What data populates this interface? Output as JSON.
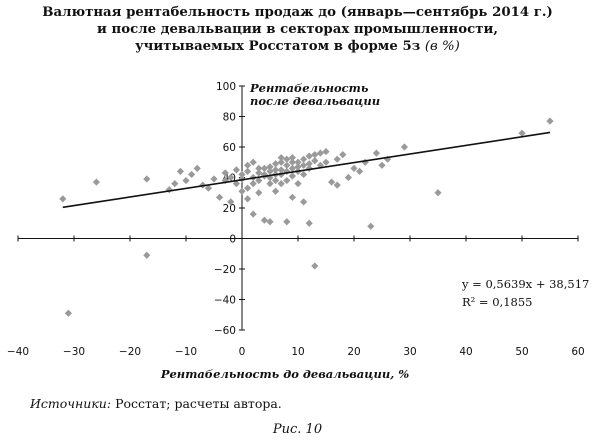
{
  "title_lines": [
    "Валютная рентабельность продаж до (январь—сентябрь 2014 г.)",
    "и после девальвации в секторах промышленности,",
    "учитываемых Росстатом в форме 5з"
  ],
  "title_unit": "(в %)",
  "source_label": "Источники:",
  "source_text": "Росстат; расчеты автора.",
  "caption": "Рис. 10",
  "chart_data": {
    "type": "scatter",
    "xlabel": "Рентабельность до девальвации, %",
    "ylabel": "Рентабельность после девальвации",
    "xlim": [
      -40,
      60
    ],
    "ylim": [
      -60,
      100
    ],
    "xticks": [
      -40,
      -30,
      -20,
      -10,
      0,
      10,
      20,
      30,
      40,
      50,
      60
    ],
    "yticks": [
      -60,
      -40,
      -20,
      0,
      20,
      40,
      60,
      80,
      100
    ],
    "marker_color": "#9a9a9a",
    "grid": false,
    "trendline": {
      "slope": 0.5639,
      "intercept": 38.517,
      "x_range": [
        -32,
        55
      ],
      "equation": "y = 0,5639x + 38,517",
      "r2": "R² = 0,1855"
    },
    "points": [
      [
        -32,
        26
      ],
      [
        -31,
        -49
      ],
      [
        -26,
        37
      ],
      [
        -17,
        -11
      ],
      [
        -17,
        39
      ],
      [
        -13,
        32
      ],
      [
        -12,
        36
      ],
      [
        -11,
        44
      ],
      [
        -10,
        38
      ],
      [
        -9,
        42
      ],
      [
        -8,
        46
      ],
      [
        -7,
        35
      ],
      [
        -6,
        33
      ],
      [
        -5,
        39
      ],
      [
        -4,
        27
      ],
      [
        -3,
        43
      ],
      [
        -3,
        38
      ],
      [
        -2,
        24
      ],
      [
        -1,
        36
      ],
      [
        0,
        42
      ],
      [
        0,
        39
      ],
      [
        0,
        31
      ],
      [
        1,
        44
      ],
      [
        1,
        48
      ],
      [
        1,
        26
      ],
      [
        2,
        16
      ],
      [
        2,
        40
      ],
      [
        2,
        36
      ],
      [
        3,
        43
      ],
      [
        3,
        46
      ],
      [
        3,
        30
      ],
      [
        4,
        46
      ],
      [
        4,
        41
      ],
      [
        4,
        12
      ],
      [
        5,
        36
      ],
      [
        5,
        47
      ],
      [
        5,
        11
      ],
      [
        5,
        44
      ],
      [
        6,
        42
      ],
      [
        6,
        38
      ],
      [
        6,
        49
      ],
      [
        6,
        31
      ],
      [
        7,
        42
      ],
      [
        7,
        45
      ],
      [
        7,
        50
      ],
      [
        7,
        53
      ],
      [
        8,
        38
      ],
      [
        8,
        48
      ],
      [
        8,
        44
      ],
      [
        8,
        11
      ],
      [
        9,
        50
      ],
      [
        9,
        53
      ],
      [
        9,
        41
      ],
      [
        9,
        27
      ],
      [
        10,
        47
      ],
      [
        10,
        50
      ],
      [
        10,
        36
      ],
      [
        11,
        48
      ],
      [
        11,
        52
      ],
      [
        11,
        24
      ],
      [
        12,
        49
      ],
      [
        12,
        54
      ],
      [
        12,
        10
      ],
      [
        13,
        55
      ],
      [
        13,
        51
      ],
      [
        13,
        -18
      ],
      [
        14,
        56
      ],
      [
        14,
        48
      ],
      [
        15,
        57
      ],
      [
        16,
        37
      ],
      [
        17,
        35
      ],
      [
        17,
        52
      ],
      [
        18,
        55
      ],
      [
        19,
        40
      ],
      [
        20,
        46
      ],
      [
        21,
        44
      ],
      [
        22,
        50
      ],
      [
        23,
        8
      ],
      [
        24,
        56
      ],
      [
        25,
        48
      ],
      [
        26,
        52
      ],
      [
        29,
        60
      ],
      [
        35,
        30
      ],
      [
        50,
        69
      ],
      [
        55,
        77
      ],
      [
        -1,
        45
      ],
      [
        2,
        50
      ],
      [
        4,
        42
      ],
      [
        6,
        45
      ],
      [
        8,
        52
      ],
      [
        10,
        44
      ],
      [
        12,
        46
      ],
      [
        15,
        50
      ],
      [
        3,
        38
      ],
      [
        -2,
        40
      ],
      [
        1,
        33
      ],
      [
        5,
        40
      ],
      [
        7,
        36
      ],
      [
        9,
        46
      ],
      [
        11,
        42
      ]
    ]
  }
}
